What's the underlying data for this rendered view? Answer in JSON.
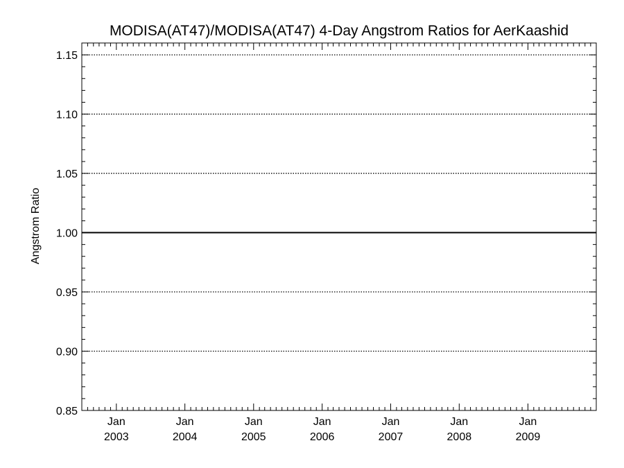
{
  "chart_data": {
    "type": "line",
    "title": "MODISA(AT47)/MODISA(AT47) 4-Day Angstrom Ratios for AerKaashid",
    "xlabel": "",
    "ylabel": "Angstrom Ratio",
    "ylim": [
      0.85,
      1.16
    ],
    "xlim": [
      "2002-07-01",
      "2009-12-31"
    ],
    "y_ticks": [
      0.85,
      0.9,
      0.95,
      1.0,
      1.05,
      1.1,
      1.15
    ],
    "y_tick_labels": [
      "0.85",
      "0.90",
      "0.95",
      "1.00",
      "1.05",
      "1.10",
      "1.15"
    ],
    "y_minor_step": 0.01,
    "x_ticks": [
      {
        "date": "2003-01-01",
        "month": "Jan",
        "year": "2003"
      },
      {
        "date": "2004-01-01",
        "month": "Jan",
        "year": "2004"
      },
      {
        "date": "2005-01-01",
        "month": "Jan",
        "year": "2005"
      },
      {
        "date": "2006-01-01",
        "month": "Jan",
        "year": "2006"
      },
      {
        "date": "2007-01-01",
        "month": "Jan",
        "year": "2007"
      },
      {
        "date": "2008-01-01",
        "month": "Jan",
        "year": "2008"
      },
      {
        "date": "2009-01-01",
        "month": "Jan",
        "year": "2009"
      }
    ],
    "grid": "dotted horizontal at major y ticks",
    "reference_line": {
      "y": 1.0,
      "style": "solid"
    },
    "series": []
  }
}
